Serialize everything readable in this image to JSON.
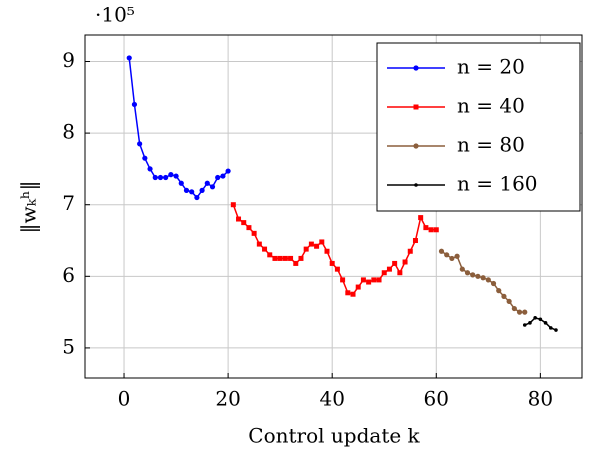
{
  "chart_data": {
    "type": "line",
    "xlabel": "Control update k",
    "ylabel": "‖wₖʰ‖",
    "y_multiplier": "·10⁵",
    "xlim": [
      -7.5,
      88
    ],
    "ylim": [
      4.58,
      9.37
    ],
    "xticks": [
      0,
      20,
      40,
      60,
      80
    ],
    "yticks": [
      5,
      6,
      7,
      8,
      9
    ],
    "grid": true,
    "legend_position": "upper right",
    "series": [
      {
        "name": "n = 20",
        "color": "#0000ff",
        "marker": "circle",
        "x": [
          1,
          2,
          3,
          4,
          5,
          6,
          7,
          8,
          9,
          10,
          11,
          12,
          13,
          14,
          15,
          16,
          17,
          18,
          19,
          20
        ],
        "values": [
          9.05,
          8.4,
          7.85,
          7.65,
          7.5,
          7.38,
          7.38,
          7.38,
          7.42,
          7.4,
          7.3,
          7.2,
          7.18,
          7.1,
          7.2,
          7.3,
          7.25,
          7.38,
          7.4,
          7.47
        ]
      },
      {
        "name": "n = 40",
        "color": "#ff0000",
        "marker": "square",
        "x": [
          21,
          22,
          23,
          24,
          25,
          26,
          27,
          28,
          29,
          30,
          31,
          32,
          33,
          34,
          35,
          36,
          37,
          38,
          39,
          40,
          41,
          42,
          43,
          44,
          45,
          46,
          47,
          48,
          49,
          50,
          51,
          52,
          53,
          54,
          55,
          56,
          57,
          58,
          59,
          60
        ],
        "values": [
          7.0,
          6.8,
          6.75,
          6.68,
          6.6,
          6.45,
          6.38,
          6.3,
          6.25,
          6.25,
          6.25,
          6.25,
          6.18,
          6.25,
          6.38,
          6.45,
          6.42,
          6.48,
          6.35,
          6.18,
          6.1,
          5.95,
          5.77,
          5.75,
          5.85,
          5.95,
          5.92,
          5.95,
          5.95,
          6.05,
          6.1,
          6.18,
          6.05,
          6.2,
          6.35,
          6.5,
          6.82,
          6.68,
          6.65,
          6.65
        ]
      },
      {
        "name": "n = 80",
        "color": "#8b5e3c",
        "marker": "circle",
        "x": [
          61,
          62,
          63,
          64,
          65,
          66,
          67,
          68,
          69,
          70,
          71,
          72,
          73,
          74,
          75,
          76,
          77
        ],
        "values": [
          6.35,
          6.3,
          6.25,
          6.28,
          6.1,
          6.05,
          6.02,
          6.0,
          5.98,
          5.95,
          5.9,
          5.8,
          5.72,
          5.65,
          5.55,
          5.5,
          5.5
        ]
      },
      {
        "name": "n = 160",
        "color": "#000000",
        "marker": "dot",
        "x": [
          77,
          78,
          79,
          80,
          81,
          82,
          83
        ],
        "values": [
          5.32,
          5.35,
          5.42,
          5.4,
          5.35,
          5.28,
          5.25
        ]
      }
    ]
  }
}
